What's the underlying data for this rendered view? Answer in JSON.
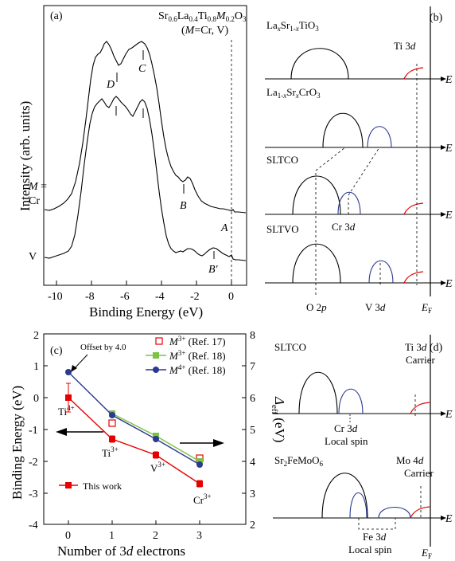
{
  "panel_a": {
    "label": "(a)",
    "formula_line1": "Sr0.6La0.4Ti0.8M0.2O3",
    "formula_line2": "(M=Cr, V)",
    "ylabel": "Intensity (arb. units)",
    "xlabel": "Binding Energy (eV)",
    "xticks": [
      "-10",
      "-8",
      "-6",
      "-4",
      "-2",
      "0"
    ],
    "curve_cr_label_1": "M =",
    "curve_cr_label_2": "Cr",
    "curve_v_label": "V",
    "peak_labels": {
      "D": "D",
      "C": "C",
      "B": "B",
      "A": "A",
      "Bp": "B′"
    }
  },
  "panel_b": {
    "label": "(b)",
    "rows": [
      {
        "name": "LaxSr1-xTiO3",
        "axis": "E"
      },
      {
        "name": "La1-xSrxCrO3",
        "axis": "E"
      },
      {
        "name": "SLTCO",
        "axis": "E"
      },
      {
        "name": "SLTVO",
        "axis": "E"
      }
    ],
    "ti3d": "Ti 3d",
    "cr3d": "Cr 3d",
    "bottom_labels": {
      "o2p": "O 2p",
      "v3d": "V 3d",
      "ef": "EF"
    }
  },
  "panel_c": {
    "label": "(c)",
    "ylabel_left": "Binding Energy (eV)",
    "ylabel_right": "Δeff (eV)",
    "xlabel": "Number of 3d electrons",
    "yticks_left": [
      "2",
      "1",
      "0",
      "-1",
      "-2",
      "-3",
      "-4"
    ],
    "yticks_right": [
      "8",
      "7",
      "6",
      "5",
      "4",
      "3",
      "2"
    ],
    "xticks": [
      "0",
      "1",
      "2",
      "3"
    ],
    "offset_note": "Offset by 4.0",
    "ion_labels": [
      "Ti4+",
      "Ti3+",
      "V3+",
      "Cr3+"
    ],
    "legend": [
      {
        "label": "M3+ (Ref. 17)",
        "color": "#e60000",
        "marker": "open-square"
      },
      {
        "label": "M3+ (Ref. 18)",
        "color": "#7dc242",
        "marker": "filled-square"
      },
      {
        "label": "M4+ (Ref. 18)",
        "color": "#2b3990",
        "marker": "filled-circle"
      },
      {
        "label": "This work",
        "color": "#e60000",
        "marker": "filled-square"
      }
    ]
  },
  "panel_d": {
    "label": "(d)",
    "rows": [
      {
        "name": "SLTCO",
        "axis": "E",
        "top_label_1": "Ti 3d",
        "top_label_2": "Carrier",
        "mid_label_1": "Cr 3d",
        "mid_label_2": "Local spin"
      },
      {
        "name": "Sr2FeMoO6",
        "axis": "E",
        "top_label_1": "Mo 4d",
        "top_label_2": "Carrier",
        "mid_label_1": "Fe 3d",
        "mid_label_2": "Local spin"
      }
    ],
    "ef": "EF"
  },
  "chart_data": [
    {
      "type": "line",
      "title": "",
      "xlabel": "Number of 3d electrons",
      "ylabel": "Binding Energy (eV)",
      "ylabel_right": "Δeff (eV)",
      "xlim": [
        -0.5,
        3.5
      ],
      "ylim": [
        -4,
        2
      ],
      "ylim_right": [
        2,
        8
      ],
      "categories": [
        0,
        1,
        2,
        3
      ],
      "series": [
        {
          "name": "This work",
          "axis": "left",
          "color": "#e60000",
          "x": [
            0,
            1,
            2,
            3
          ],
          "values": [
            0.0,
            -1.3,
            -1.8,
            -2.7
          ],
          "errors": [
            0.45,
            0.1,
            0.1,
            0.1
          ]
        },
        {
          "name": "M3+ (Ref. 17)",
          "axis": "right",
          "color": "#e60000",
          "x": [
            1,
            3
          ],
          "values": [
            5.2,
            4.1
          ]
        },
        {
          "name": "M3+ (Ref. 18)",
          "axis": "right",
          "color": "#7dc242",
          "x": [
            1,
            2,
            3
          ],
          "values": [
            5.5,
            4.8,
            4.0
          ]
        },
        {
          "name": "M4+ (Ref. 18)",
          "axis": "right",
          "color": "#2b3990",
          "x": [
            0,
            1,
            2,
            3
          ],
          "values": [
            6.8,
            5.45,
            4.7,
            3.9
          ]
        }
      ]
    }
  ]
}
